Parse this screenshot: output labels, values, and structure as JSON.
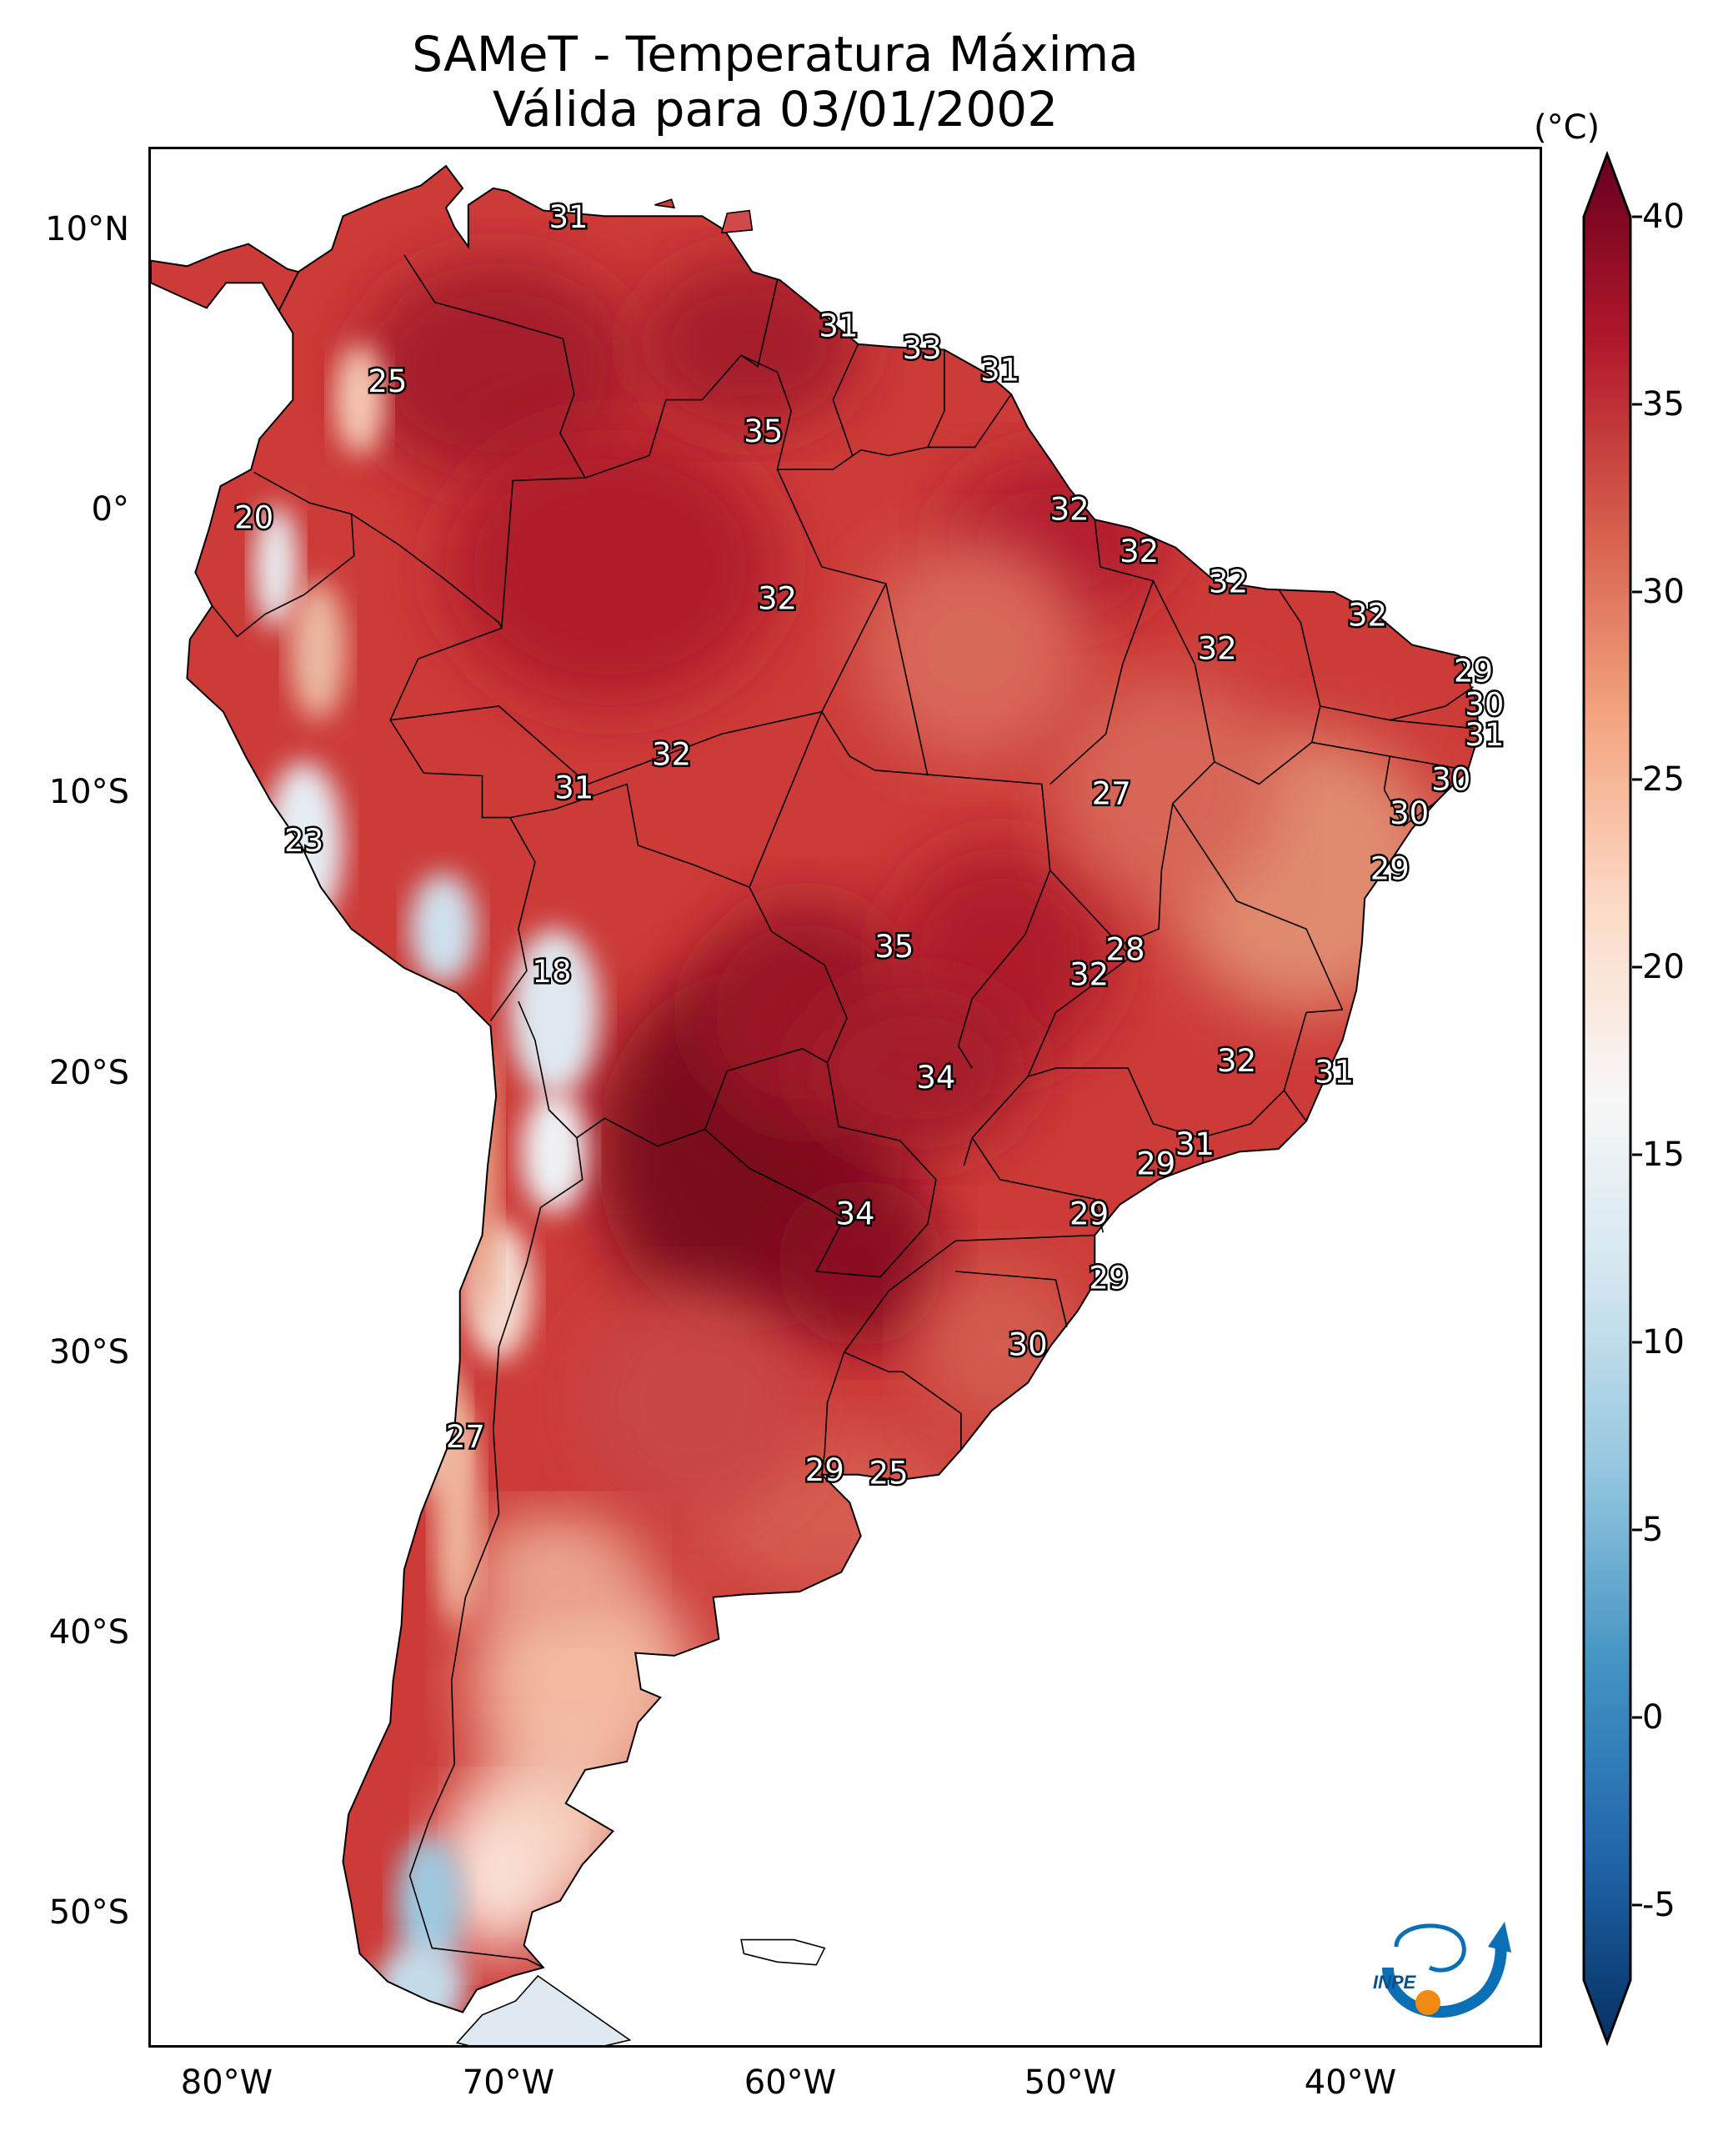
{
  "title": {
    "line1": "SAMeT - Temperatura Máxima",
    "line2": "Válida para 03/01/2002"
  },
  "axes": {
    "lon_labels": [
      "80°W",
      "70°W",
      "60°W",
      "50°W",
      "40°W"
    ],
    "lat_labels": [
      "10°N",
      "0°",
      "10°S",
      "20°S",
      "30°S",
      "40°S",
      "50°S"
    ]
  },
  "colorbar": {
    "unit": "(°C)",
    "min": -7,
    "max": 40,
    "ticks": [
      "40",
      "35",
      "30",
      "25",
      "20",
      "15",
      "10",
      "5",
      "0",
      "-5"
    ],
    "extend": "both",
    "colors": [
      "#053061",
      "#2166ac",
      "#4393c3",
      "#92c5de",
      "#d1e5f0",
      "#f7f7f7",
      "#fddbc7",
      "#f4a582",
      "#d6604d",
      "#b2182b",
      "#67001f"
    ]
  },
  "map_labels": [
    {
      "text": "31",
      "lon": -67.5,
      "lat": 10.5
    },
    {
      "text": "31",
      "lon": -57.8,
      "lat": 6.6
    },
    {
      "text": "33",
      "lon": -54.8,
      "lat": 5.8
    },
    {
      "text": "31",
      "lon": -52.0,
      "lat": 5.0
    },
    {
      "text": "25",
      "lon": -74.0,
      "lat": 4.6
    },
    {
      "text": "35",
      "lon": -60.5,
      "lat": 2.8
    },
    {
      "text": "32",
      "lon": -49.5,
      "lat": 0.0
    },
    {
      "text": "20",
      "lon": -78.8,
      "lat": -0.3
    },
    {
      "text": "32",
      "lon": -47.0,
      "lat": -1.5
    },
    {
      "text": "32",
      "lon": -43.8,
      "lat": -2.6
    },
    {
      "text": "32",
      "lon": -38.8,
      "lat": -3.8
    },
    {
      "text": "32",
      "lon": -60.0,
      "lat": -3.2
    },
    {
      "text": "32",
      "lon": -44.2,
      "lat": -5.0
    },
    {
      "text": "29",
      "lon": -35.0,
      "lat": -5.8
    },
    {
      "text": "30",
      "lon": -34.6,
      "lat": -7.0
    },
    {
      "text": "31",
      "lon": -34.6,
      "lat": -8.1
    },
    {
      "text": "32",
      "lon": -63.8,
      "lat": -8.8
    },
    {
      "text": "30",
      "lon": -35.8,
      "lat": -9.7
    },
    {
      "text": "31",
      "lon": -67.3,
      "lat": -10.0
    },
    {
      "text": "27",
      "lon": -48.0,
      "lat": -10.2
    },
    {
      "text": "30",
      "lon": -37.3,
      "lat": -10.9
    },
    {
      "text": "23",
      "lon": -77.0,
      "lat": -11.9
    },
    {
      "text": "29",
      "lon": -38.0,
      "lat": -12.9
    },
    {
      "text": "35",
      "lon": -55.8,
      "lat": -15.7
    },
    {
      "text": "28",
      "lon": -47.5,
      "lat": -15.8
    },
    {
      "text": "32",
      "lon": -48.8,
      "lat": -16.7
    },
    {
      "text": "18",
      "lon": -68.1,
      "lat": -16.6
    },
    {
      "text": "32",
      "lon": -43.5,
      "lat": -19.8
    },
    {
      "text": "31",
      "lon": -40.0,
      "lat": -20.2
    },
    {
      "text": "34",
      "lon": -54.3,
      "lat": -20.4
    },
    {
      "text": "31",
      "lon": -45.0,
      "lat": -22.8
    },
    {
      "text": "29",
      "lon": -46.4,
      "lat": -23.5
    },
    {
      "text": "34",
      "lon": -57.2,
      "lat": -25.3
    },
    {
      "text": "29",
      "lon": -48.8,
      "lat": -25.3
    },
    {
      "text": "29",
      "lon": -48.1,
      "lat": -27.6
    },
    {
      "text": "30",
      "lon": -51.0,
      "lat": -30.0
    },
    {
      "text": "27",
      "lon": -71.2,
      "lat": -33.3
    },
    {
      "text": "29",
      "lon": -58.3,
      "lat": -34.5
    },
    {
      "text": "25",
      "lon": -56.0,
      "lat": -34.6
    }
  ],
  "logo": {
    "text": "INPE"
  }
}
